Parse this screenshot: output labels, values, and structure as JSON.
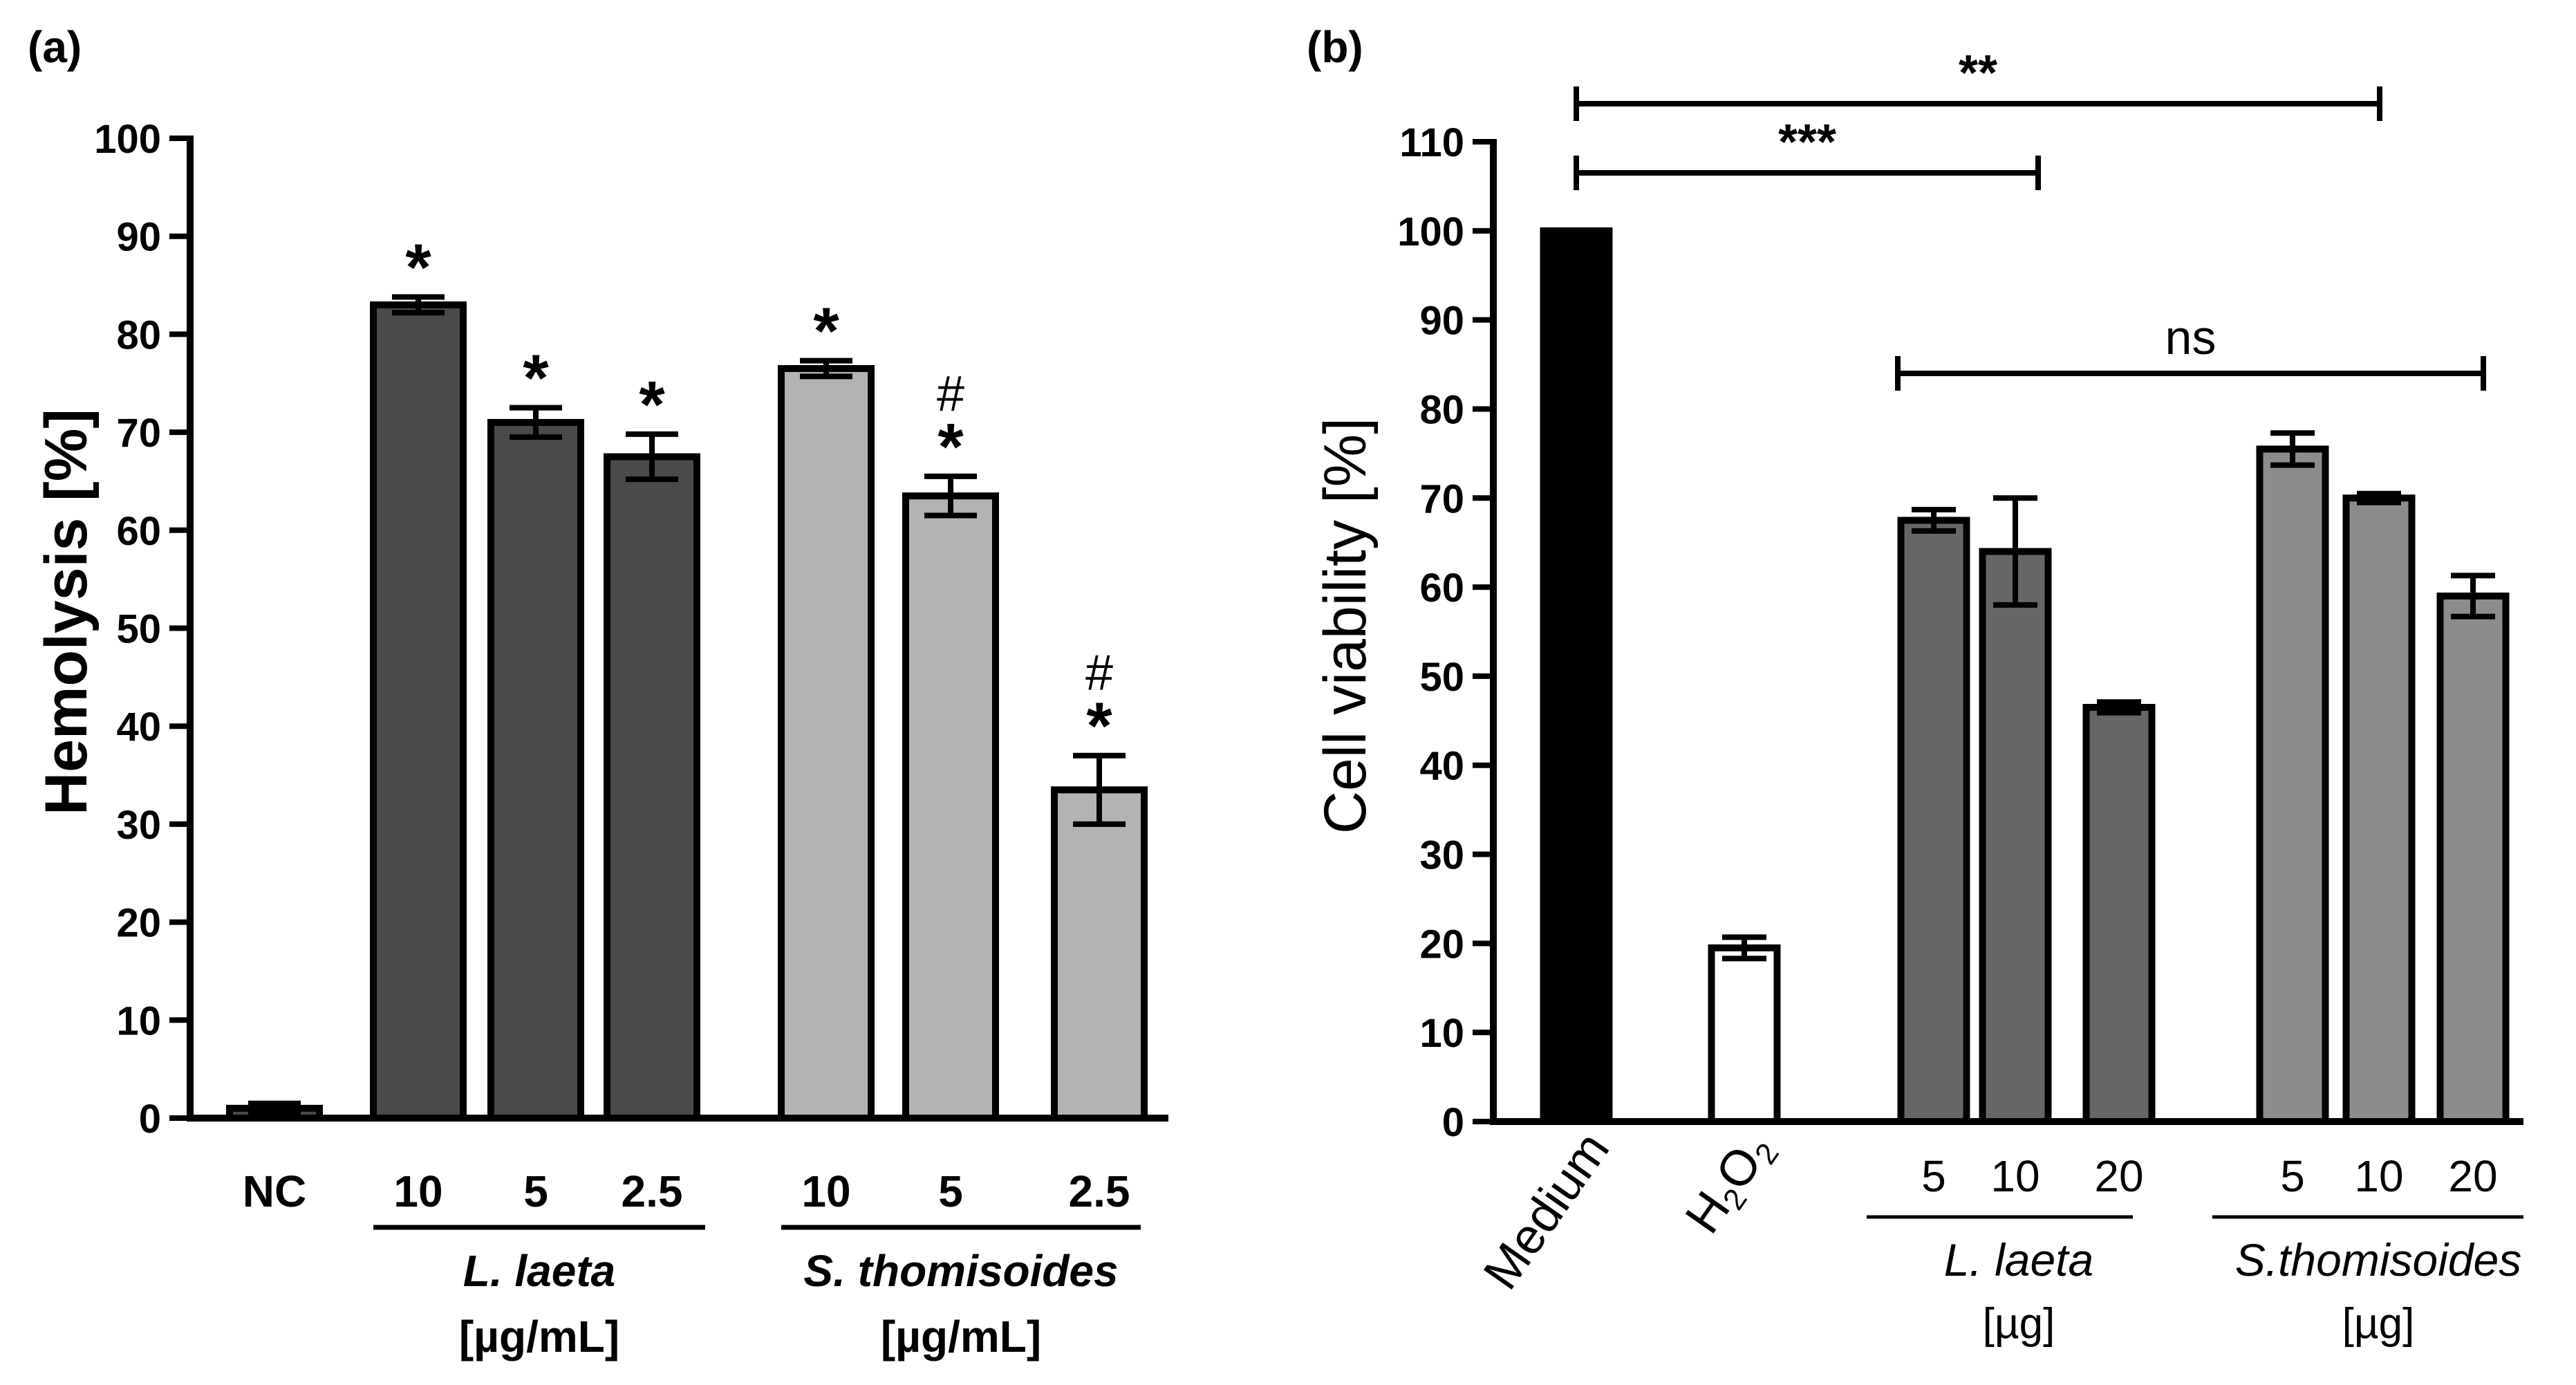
{
  "chart_data": [
    {
      "panel_label": "(a)",
      "type": "bar",
      "title": "",
      "ylabel": "Hemolysis [%]",
      "xlabel": "",
      "ylim": [
        0,
        100
      ],
      "yticks": [
        "0",
        "10",
        "20",
        "30",
        "40",
        "50",
        "60",
        "70",
        "80",
        "90",
        "100"
      ],
      "categories": [
        "NC",
        "10",
        "5",
        "2.5",
        "10",
        "5",
        "2.5"
      ],
      "values": [
        1,
        83,
        71,
        67.5,
        76.5,
        63.5,
        33.5
      ],
      "errors": [
        0.5,
        0.8,
        1.5,
        2.3,
        0.8,
        2.0,
        3.5
      ],
      "annotations": [
        "",
        "*",
        "*",
        "*",
        "*",
        "*",
        "*"
      ],
      "annotations_top": [
        "",
        "",
        "",
        "",
        "",
        "#",
        "#"
      ],
      "groups": [
        {
          "name": "L. laeta",
          "unit": "[µg/mL]"
        },
        {
          "name": "S. thomisoides",
          "unit": "[µg/mL]"
        }
      ],
      "colors": {
        "L. laeta": "#4a4a4a",
        "S. thomisoides": "#b3b3b3",
        "NC": "#4a4a4a"
      }
    },
    {
      "panel_label": "(b)",
      "type": "bar",
      "title": "",
      "ylabel": "Cell viability  [%]",
      "xlabel": "",
      "ylim": [
        0,
        110
      ],
      "yticks": [
        "0",
        "10",
        "20",
        "30",
        "40",
        "50",
        "60",
        "70",
        "80",
        "90",
        "100",
        "110"
      ],
      "categories": [
        "Medium",
        "H2O2",
        "5",
        "10",
        "20",
        "5",
        "10",
        "20"
      ],
      "h2o2_label": {
        "base": "H",
        "sub1": "2",
        "mid": "O",
        "sub2": "2"
      },
      "values": [
        100,
        19.5,
        67.5,
        64,
        46.5,
        75.5,
        70,
        59
      ],
      "errors": [
        0,
        1.2,
        1.2,
        6.0,
        0.6,
        1.8,
        0.5,
        2.3
      ],
      "groups": [
        {
          "name": "L. laeta",
          "unit": "[µg]"
        },
        {
          "name": "S.thomisoides",
          "unit": "[µg]"
        }
      ],
      "significance": [
        {
          "label": "**"
        },
        {
          "label": "***"
        },
        {
          "label": "ns"
        }
      ],
      "colors": {
        "Medium": "#000000",
        "H2O2": "#ffffff",
        "L. laeta": "#666666",
        "S.thomisoides": "#8c8c8c"
      }
    }
  ]
}
